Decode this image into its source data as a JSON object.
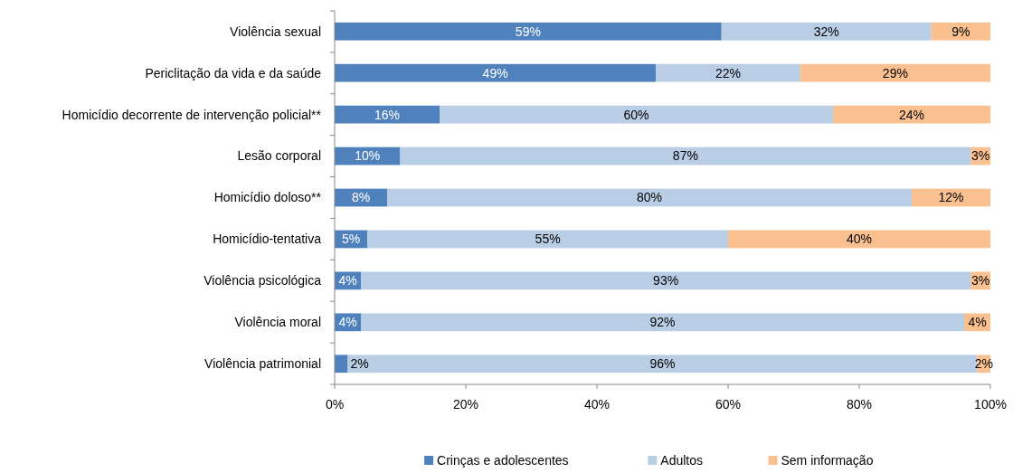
{
  "chart_data": {
    "type": "bar",
    "orientation": "horizontal",
    "stacked": true,
    "legend": "bottom",
    "categories": [
      "Violência sexual",
      "Periclitação da vida e da saúde",
      "Homicídio decorrente de intervenção policial**",
      "Lesão corporal",
      "Homicídio doloso**",
      "Homicídio-tentativa",
      "Violência psicológica",
      "Violência moral",
      "Violência patrimonial"
    ],
    "xlim": [
      0,
      100
    ],
    "xticks": [
      {
        "value": 0,
        "label": "0%"
      },
      {
        "value": 20,
        "label": "20%"
      },
      {
        "value": 40,
        "label": "40%"
      },
      {
        "value": 60,
        "label": "60%"
      },
      {
        "value": 80,
        "label": "80%"
      },
      {
        "value": 100,
        "label": "100%"
      }
    ],
    "series": [
      {
        "name": "Crinças e adolescentes",
        "color": "#4f81bd",
        "values": [
          59,
          49,
          16,
          10,
          8,
          5,
          4,
          4,
          2
        ],
        "value_labels": [
          "59%",
          "49%",
          "16%",
          "10%",
          "8%",
          "5%",
          "4%",
          "4%",
          "2%"
        ]
      },
      {
        "name": "Adultos",
        "color": "#b9cde5",
        "values": [
          32,
          22,
          60,
          87,
          80,
          55,
          93,
          92,
          96
        ],
        "value_labels": [
          "32%",
          "22%",
          "60%",
          "87%",
          "80%",
          "55%",
          "93%",
          "92%",
          "96%"
        ]
      },
      {
        "name": "Sem informação",
        "color": "#fac090",
        "values": [
          9,
          29,
          24,
          3,
          12,
          40,
          3,
          4,
          2
        ],
        "value_labels": [
          "9%",
          "29%",
          "24%",
          "3%",
          "12%",
          "40%",
          "3%",
          "4%",
          "2%"
        ]
      }
    ]
  }
}
